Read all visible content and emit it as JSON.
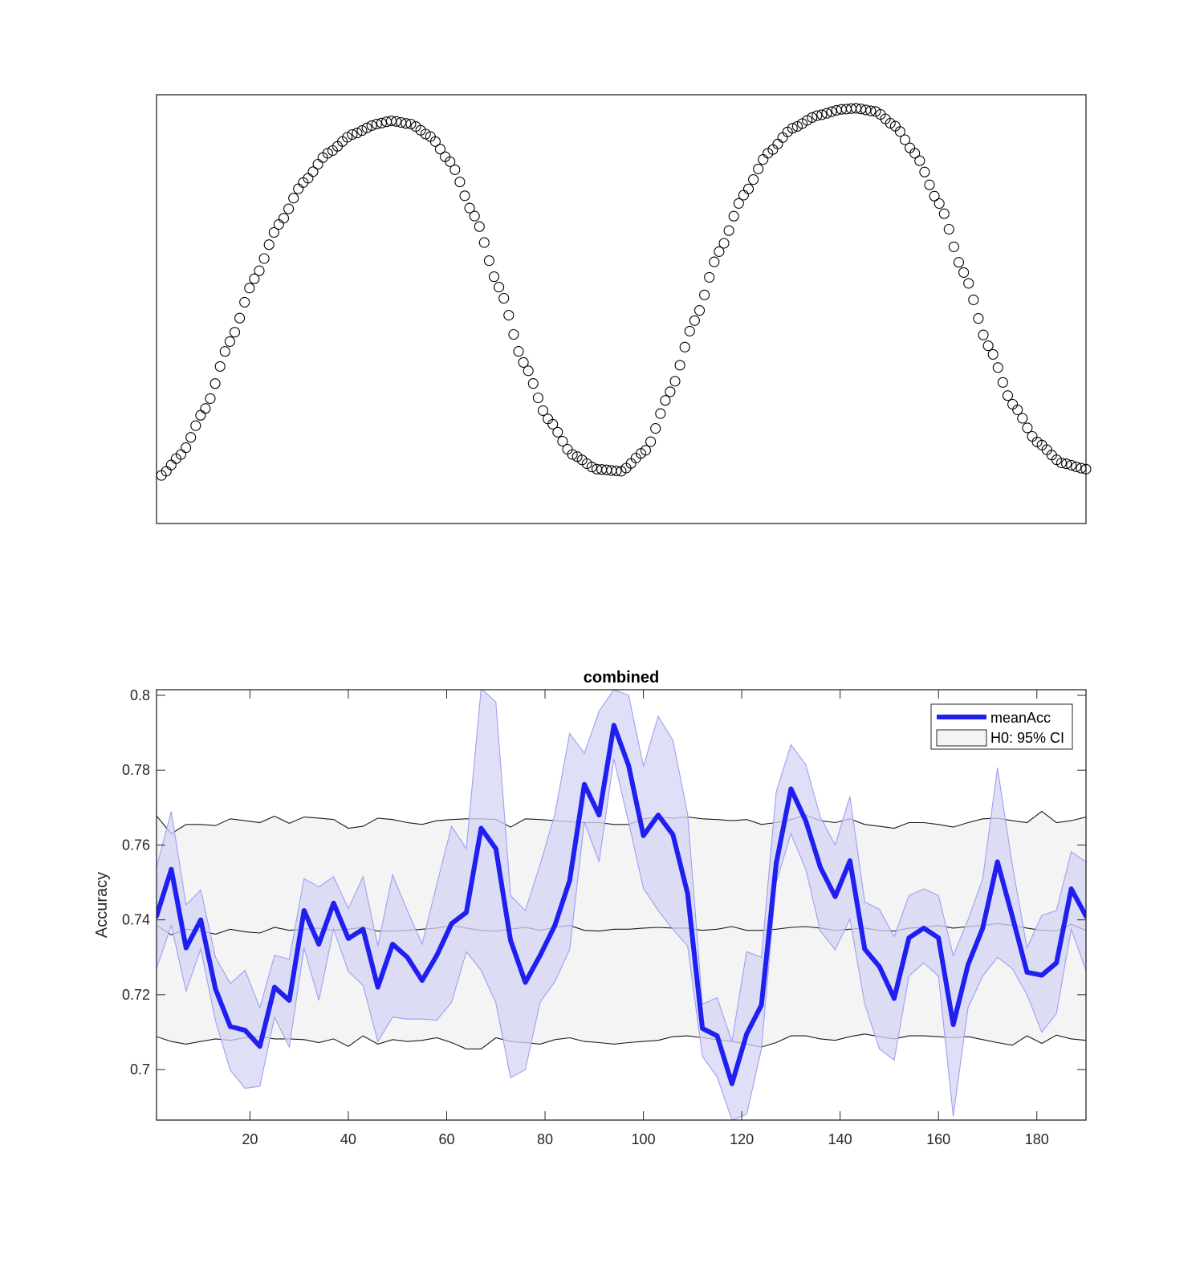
{
  "chart_data": [
    {
      "type": "scatter",
      "title": "",
      "xlabel": "",
      "ylabel": "",
      "xlim": [
        0,
        190
      ],
      "ylim": [
        -1.05,
        1.0
      ],
      "axis_ticks_visible": false,
      "marker": "open-circle",
      "marker_color": "#000000",
      "series": [
        {
          "points_count": 190,
          "generator": "0.5*(sin(2*pi*(x-1)/96 - pi/2) + sin(4*pi*(x-1)/190 ... )",
          "shape_samples": [
            [
              1,
              -0.82
            ],
            [
              5,
              -0.72
            ],
            [
              10,
              -0.5
            ],
            [
              15,
              -0.18
            ],
            [
              20,
              0.12
            ],
            [
              25,
              0.38
            ],
            [
              30,
              0.58
            ],
            [
              35,
              0.72
            ],
            [
              40,
              0.81
            ],
            [
              45,
              0.86
            ],
            [
              48,
              0.875
            ],
            [
              52,
              0.86
            ],
            [
              56,
              0.8
            ],
            [
              60,
              0.68
            ],
            [
              65,
              0.42
            ],
            [
              70,
              0.08
            ],
            [
              75,
              -0.28
            ],
            [
              80,
              -0.55
            ],
            [
              85,
              -0.72
            ],
            [
              90,
              -0.79
            ],
            [
              95,
              -0.8
            ],
            [
              100,
              -0.7
            ],
            [
              105,
              -0.42
            ],
            [
              110,
              -0.08
            ],
            [
              115,
              0.25
            ],
            [
              120,
              0.52
            ],
            [
              125,
              0.72
            ],
            [
              130,
              0.84
            ],
            [
              135,
              0.9
            ],
            [
              140,
              0.93
            ],
            [
              143,
              0.935
            ],
            [
              147,
              0.92
            ],
            [
              151,
              0.85
            ],
            [
              155,
              0.72
            ],
            [
              160,
              0.48
            ],
            [
              165,
              0.15
            ],
            [
              170,
              -0.2
            ],
            [
              175,
              -0.48
            ],
            [
              180,
              -0.66
            ],
            [
              185,
              -0.76
            ],
            [
              190,
              -0.79
            ]
          ]
        }
      ]
    },
    {
      "type": "line",
      "title": "combined",
      "xlabel": "",
      "ylabel": "Accuracy",
      "xlim": [
        1,
        190
      ],
      "ylim": [
        0.6865,
        0.8015
      ],
      "xticks": [
        20,
        40,
        60,
        80,
        100,
        120,
        140,
        160,
        180
      ],
      "yticks": [
        0.7,
        0.72,
        0.74,
        0.76,
        0.78,
        0.8
      ],
      "ytick_labels": [
        "0.7",
        "0.72",
        "0.74",
        "0.76",
        "0.78",
        "0.8"
      ],
      "legend": {
        "placement": "top-right",
        "entries": [
          {
            "label": "meanAcc",
            "kind": "line",
            "color": "#1f1ff0"
          },
          {
            "label": "H0: 95% CI",
            "kind": "patch",
            "color": "#f4f4f4"
          }
        ]
      },
      "colors": {
        "mean": "#1f1ff0",
        "band_fill": "#d4d4f6",
        "band_edge": "#9f9ff2",
        "h0_fill": "#f4f4f4"
      },
      "series": [
        {
          "name": "meanAcc",
          "x": [
            1,
            4,
            7,
            10,
            13,
            16,
            19,
            22,
            25,
            28,
            31,
            34,
            37,
            40,
            43,
            46,
            49,
            52,
            55,
            58,
            61,
            64,
            67,
            70,
            73,
            76,
            79,
            82,
            85,
            88,
            91,
            94,
            97,
            100,
            103,
            106,
            109,
            112,
            115,
            118,
            121,
            124,
            127,
            130,
            133,
            136,
            139,
            142,
            145,
            148,
            151,
            154,
            157,
            160,
            163,
            166,
            169,
            172,
            175,
            178,
            181,
            184,
            187,
            190
          ],
          "mean": [
            0.741,
            0.7535,
            0.7325,
            0.74,
            0.7215,
            0.7115,
            0.7105,
            0.7062,
            0.722,
            0.7185,
            0.7425,
            0.7335,
            0.7445,
            0.735,
            0.7375,
            0.722,
            0.7335,
            0.73,
            0.7238,
            0.7305,
            0.739,
            0.742,
            0.7645,
            0.759,
            0.7345,
            0.7233,
            0.7305,
            0.7385,
            0.7505,
            0.7762,
            0.768,
            0.792,
            0.7812,
            0.7625,
            0.768,
            0.7628,
            0.747,
            0.711,
            0.709,
            0.6962,
            0.7095,
            0.7172,
            0.755,
            0.775,
            0.7665,
            0.754,
            0.7462,
            0.7558,
            0.7322,
            0.7275,
            0.719,
            0.7352,
            0.7378,
            0.7352,
            0.712,
            0.728,
            0.7378,
            0.7555,
            0.741,
            0.726,
            0.7252,
            0.7285,
            0.7483,
            0.741
          ],
          "upper": [
            0.754,
            0.769,
            0.744,
            0.748,
            0.73,
            0.723,
            0.7265,
            0.7165,
            0.7305,
            0.7295,
            0.751,
            0.7488,
            0.7515,
            0.743,
            0.7515,
            0.733,
            0.752,
            0.7425,
            0.7335,
            0.7495,
            0.765,
            0.759,
            0.8018,
            0.7982,
            0.7465,
            0.7425,
            0.7548,
            0.7682,
            0.7898,
            0.7845,
            0.7958,
            0.8015,
            0.8,
            0.781,
            0.7944,
            0.788,
            0.7682,
            0.7175,
            0.7192,
            0.7075,
            0.7315,
            0.73,
            0.7742,
            0.7868,
            0.7815,
            0.7674,
            0.76,
            0.773,
            0.7448,
            0.7428,
            0.7355,
            0.7465,
            0.7483,
            0.7465,
            0.7305,
            0.74,
            0.7509,
            0.7807,
            0.7548,
            0.7325,
            0.7412,
            0.7425,
            0.7582,
            0.7555
          ],
          "lower": [
            0.727,
            0.7385,
            0.721,
            0.7322,
            0.713,
            0.6998,
            0.695,
            0.6955,
            0.714,
            0.706,
            0.7325,
            0.7185,
            0.7375,
            0.7262,
            0.7225,
            0.7075,
            0.714,
            0.7135,
            0.7135,
            0.7132,
            0.718,
            0.7315,
            0.7265,
            0.7178,
            0.6978,
            0.7,
            0.718,
            0.7235,
            0.732,
            0.7662,
            0.7555,
            0.783,
            0.766,
            0.7484,
            0.7425,
            0.7375,
            0.733,
            0.7035,
            0.698,
            0.6865,
            0.688,
            0.7055,
            0.75,
            0.763,
            0.7535,
            0.737,
            0.732,
            0.7402,
            0.7175,
            0.7055,
            0.7025,
            0.725,
            0.7285,
            0.725,
            0.6875,
            0.7165,
            0.725,
            0.73,
            0.727,
            0.72,
            0.71,
            0.715,
            0.7375,
            0.7265
          ]
        },
        {
          "name": "H0: 95% CI",
          "x": [
            1,
            4,
            7,
            10,
            13,
            16,
            19,
            22,
            25,
            28,
            31,
            34,
            37,
            40,
            43,
            46,
            49,
            52,
            55,
            58,
            61,
            64,
            67,
            70,
            73,
            76,
            79,
            82,
            85,
            88,
            91,
            94,
            97,
            100,
            103,
            106,
            109,
            112,
            115,
            118,
            121,
            124,
            127,
            130,
            133,
            136,
            139,
            142,
            145,
            148,
            151,
            154,
            157,
            160,
            163,
            166,
            169,
            172,
            175,
            178,
            181,
            184,
            187,
            190
          ],
          "upper": [
            0.7678,
            0.763,
            0.7655,
            0.7655,
            0.7652,
            0.767,
            0.7665,
            0.766,
            0.7677,
            0.7658,
            0.7675,
            0.7672,
            0.7668,
            0.7645,
            0.765,
            0.7672,
            0.7668,
            0.766,
            0.7655,
            0.7665,
            0.7668,
            0.767,
            0.767,
            0.7668,
            0.7648,
            0.767,
            0.7668,
            0.7665,
            0.7662,
            0.766,
            0.766,
            0.7655,
            0.7655,
            0.767,
            0.7675,
            0.7672,
            0.7675,
            0.767,
            0.7668,
            0.7665,
            0.7668,
            0.7655,
            0.766,
            0.7668,
            0.768,
            0.7665,
            0.766,
            0.767,
            0.7655,
            0.765,
            0.7645,
            0.766,
            0.766,
            0.7655,
            0.7648,
            0.766,
            0.767,
            0.7672,
            0.7665,
            0.766,
            0.769,
            0.766,
            0.7665,
            0.7675
          ],
          "middle": [
            0.7385,
            0.736,
            0.7375,
            0.737,
            0.7362,
            0.7375,
            0.7368,
            0.7365,
            0.738,
            0.7372,
            0.7375,
            0.7378,
            0.7372,
            0.7375,
            0.738,
            0.737,
            0.737,
            0.7372,
            0.7375,
            0.7378,
            0.7385,
            0.7378,
            0.7372,
            0.737,
            0.7375,
            0.738,
            0.7372,
            0.738,
            0.7385,
            0.7372,
            0.737,
            0.7375,
            0.7375,
            0.7378,
            0.738,
            0.7378,
            0.7378,
            0.7372,
            0.7375,
            0.7382,
            0.7372,
            0.7372,
            0.7375,
            0.738,
            0.7382,
            0.7378,
            0.7372,
            0.7375,
            0.7378,
            0.7372,
            0.737,
            0.7378,
            0.738,
            0.7385,
            0.7378,
            0.7382,
            0.7385,
            0.739,
            0.7385,
            0.7378,
            0.7372,
            0.737,
            0.7388,
            0.7372
          ],
          "lower": [
            0.7088,
            0.7075,
            0.7068,
            0.7075,
            0.7082,
            0.7078,
            0.7085,
            0.7088,
            0.7082,
            0.7082,
            0.708,
            0.7072,
            0.7082,
            0.7062,
            0.709,
            0.7068,
            0.708,
            0.7075,
            0.7078,
            0.7085,
            0.7072,
            0.7055,
            0.7055,
            0.7085,
            0.7075,
            0.7072,
            0.7068,
            0.708,
            0.7085,
            0.7075,
            0.7072,
            0.7068,
            0.7072,
            0.7075,
            0.7078,
            0.7088,
            0.709,
            0.7085,
            0.708,
            0.7075,
            0.7068,
            0.706,
            0.7072,
            0.709,
            0.709,
            0.7082,
            0.7078,
            0.7088,
            0.7095,
            0.7088,
            0.7082,
            0.709,
            0.709,
            0.7088,
            0.7085,
            0.7088,
            0.708,
            0.7072,
            0.7065,
            0.709,
            0.707,
            0.7092,
            0.7082,
            0.7078
          ]
        }
      ]
    }
  ]
}
